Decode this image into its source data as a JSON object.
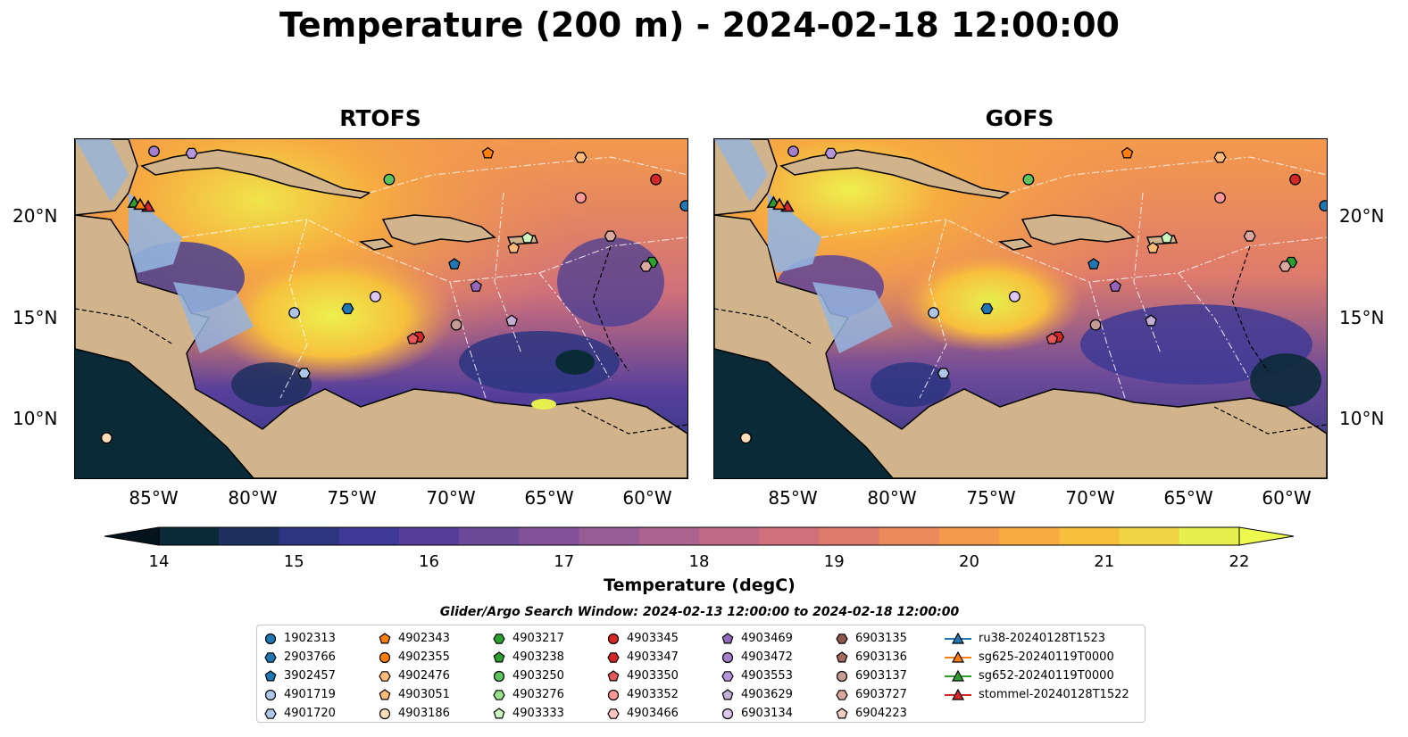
{
  "title": "Temperature (200 m) - 2024-02-18 12:00:00",
  "panels": [
    {
      "title": "RTOFS"
    },
    {
      "title": "GOFS"
    }
  ],
  "axes": {
    "lat_labels": [
      "20°N",
      "15°N",
      "10°N"
    ],
    "lon_labels": [
      "85°W",
      "80°W",
      "75°W",
      "70°W",
      "65°W",
      "60°W"
    ]
  },
  "colorbar": {
    "label": "Temperature (degC)",
    "ticks": [
      "14",
      "15",
      "16",
      "17",
      "18",
      "19",
      "20",
      "21",
      "22"
    ],
    "colors": [
      "#0b2a38",
      "#1d2f5e",
      "#2c3580",
      "#3e3a95",
      "#553f9b",
      "#6c4a9a",
      "#82519a",
      "#975b96",
      "#ad6390",
      "#c06986",
      "#d0707a",
      "#df7b6c",
      "#ec8a5c",
      "#f49a4c",
      "#f7ab40",
      "#f8bf3d",
      "#f3d444",
      "#e6ef4e"
    ]
  },
  "search_window": "Glider/Argo Search Window: 2024-02-13 12:00:00 to 2024-02-18 12:00:00",
  "legend": {
    "columns": [
      [
        {
          "label": "1902313",
          "shape": "circle",
          "color": "#1f77b4"
        },
        {
          "label": "2903766",
          "shape": "hexagon",
          "color": "#1f77b4"
        },
        {
          "label": "3902457",
          "shape": "pentagon",
          "color": "#1f77b4"
        },
        {
          "label": "4901719",
          "shape": "circle",
          "color": "#aec7e8"
        },
        {
          "label": "4901720",
          "shape": "hexagon",
          "color": "#aec7e8"
        }
      ],
      [
        {
          "label": "4902343",
          "shape": "pentagon",
          "color": "#ff7f0e"
        },
        {
          "label": "4902355",
          "shape": "circle",
          "color": "#ff7f0e"
        },
        {
          "label": "4902476",
          "shape": "hexagon",
          "color": "#ffbb78"
        },
        {
          "label": "4903051",
          "shape": "pentagon",
          "color": "#ffbb78"
        },
        {
          "label": "4903186",
          "shape": "circle",
          "color": "#ffdeb8"
        }
      ],
      [
        {
          "label": "4903217",
          "shape": "hexagon",
          "color": "#2ca02c"
        },
        {
          "label": "4903238",
          "shape": "pentagon",
          "color": "#2ca02c"
        },
        {
          "label": "4903250",
          "shape": "circle",
          "color": "#5dc35d"
        },
        {
          "label": "4903276",
          "shape": "hexagon",
          "color": "#98df8a"
        },
        {
          "label": "4903333",
          "shape": "pentagon",
          "color": "#cdf5c0"
        }
      ],
      [
        {
          "label": "4903345",
          "shape": "circle",
          "color": "#d62728"
        },
        {
          "label": "4903347",
          "shape": "hexagon",
          "color": "#d62728"
        },
        {
          "label": "4903350",
          "shape": "pentagon",
          "color": "#e8575a"
        },
        {
          "label": "4903352",
          "shape": "circle",
          "color": "#ff9896"
        },
        {
          "label": "4903466",
          "shape": "hexagon",
          "color": "#ffc4c2"
        }
      ],
      [
        {
          "label": "4903469",
          "shape": "pentagon",
          "color": "#9467bd"
        },
        {
          "label": "4903472",
          "shape": "circle",
          "color": "#a67fcc"
        },
        {
          "label": "4903553",
          "shape": "hexagon",
          "color": "#b596dc"
        },
        {
          "label": "4903629",
          "shape": "pentagon",
          "color": "#c5b0d5"
        },
        {
          "label": "6903134",
          "shape": "circle",
          "color": "#dcc8f0"
        }
      ],
      [
        {
          "label": "6903135",
          "shape": "hexagon",
          "color": "#8c564b"
        },
        {
          "label": "6903136",
          "shape": "pentagon",
          "color": "#a86c5f"
        },
        {
          "label": "6903137",
          "shape": "circle",
          "color": "#c49c94"
        },
        {
          "label": "6903727",
          "shape": "hexagon",
          "color": "#dba8a0"
        },
        {
          "label": "6904223",
          "shape": "pentagon",
          "color": "#f2ccc4"
        }
      ],
      [
        {
          "label": "ru38-20240128T1523",
          "shape": "triangle",
          "color": "#1f77b4"
        },
        {
          "label": "sg625-20240119T0000",
          "shape": "triangle",
          "color": "#ff7f0e"
        },
        {
          "label": "sg652-20240119T0000",
          "shape": "triangle",
          "color": "#2ca02c"
        },
        {
          "label": "stommel-20240128T1522",
          "shape": "triangle",
          "color": "#d62728"
        }
      ]
    ]
  },
  "map_markers": [
    {
      "label": "1902313",
      "lon": -58.1,
      "lat": 20.7
    },
    {
      "label": "2903766",
      "lon": -75.2,
      "lat": 15.6
    },
    {
      "label": "3902457",
      "lon": -69.8,
      "lat": 17.8
    },
    {
      "label": "4901719",
      "lon": -77.9,
      "lat": 15.4
    },
    {
      "label": "4901720",
      "lon": -77.4,
      "lat": 12.4
    },
    {
      "label": "4902343",
      "lon": -68.1,
      "lat": 23.3
    },
    {
      "label": "4902476",
      "lon": -63.4,
      "lat": 23.1
    },
    {
      "label": "4903051",
      "lon": -66.8,
      "lat": 18.6
    },
    {
      "label": "4903186",
      "lon": -87.4,
      "lat": 9.2
    },
    {
      "label": "4903217",
      "lon": -59.8,
      "lat": 17.9
    },
    {
      "label": "4903250",
      "lon": -73.1,
      "lat": 22.0
    },
    {
      "label": "4903333",
      "lon": -66.1,
      "lat": 19.1
    },
    {
      "label": "4903345",
      "lon": -59.6,
      "lat": 22.0
    },
    {
      "label": "4903347",
      "lon": -71.6,
      "lat": 14.2
    },
    {
      "label": "4903350",
      "lon": -71.9,
      "lat": 14.1
    },
    {
      "label": "4903352",
      "lon": -63.4,
      "lat": 21.1
    },
    {
      "label": "4903469",
      "lon": -68.7,
      "lat": 16.7
    },
    {
      "label": "4903472",
      "lon": -85.0,
      "lat": 23.4
    },
    {
      "label": "4903553",
      "lon": -83.1,
      "lat": 23.3
    },
    {
      "label": "4903629",
      "lon": -66.9,
      "lat": 15.0
    },
    {
      "label": "6903134",
      "lon": -73.8,
      "lat": 16.2
    },
    {
      "label": "6903137",
      "lon": -69.7,
      "lat": 14.8
    },
    {
      "label": "6903727",
      "lon": -60.1,
      "lat": 17.7
    },
    {
      "label": "6903727",
      "lon": -61.9,
      "lat": 19.2
    },
    {
      "label": "sg652-20240119T0000",
      "lon": -86.0,
      "lat": 20.8
    },
    {
      "label": "stommel-20240128T1522",
      "lon": -85.3,
      "lat": 20.6
    },
    {
      "label": "sg625-20240119T0000",
      "lon": -85.7,
      "lat": 20.7
    }
  ]
}
